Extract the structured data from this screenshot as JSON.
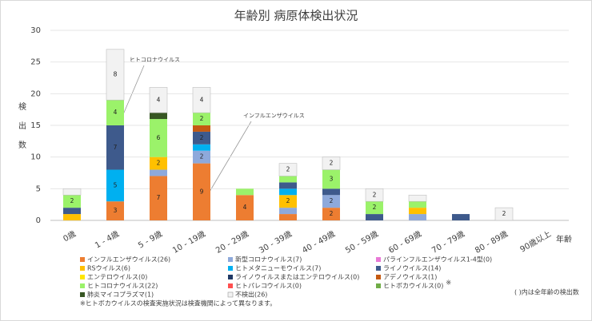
{
  "chart_data": {
    "type": "stacked-bar",
    "title": "年齢別 病原体検出状況",
    "y_label": "検出数",
    "x_label": "年齢",
    "categories": [
      "0歳",
      "1 - 4歳",
      "5 - 9歳",
      "10 - 19歳",
      "20 - 29歳",
      "30 - 39歳",
      "40 - 49歳",
      "50 - 59歳",
      "60 - 69歳",
      "70 - 79歳",
      "80 - 89歳",
      "90歳以上"
    ],
    "ylim": [
      0,
      30
    ],
    "yticks": [
      0,
      5,
      10,
      15,
      20,
      25,
      30
    ],
    "grid": true,
    "series": [
      {
        "name": "インフルエンザウイルス(26)",
        "color": "#ED7D31",
        "values": [
          0,
          3,
          7,
          9,
          4,
          1,
          2,
          0,
          0,
          0,
          0,
          0
        ]
      },
      {
        "name": "新型コロナウイルス(7)",
        "color": "#8EA9DB",
        "values": [
          0,
          0,
          1,
          2,
          0,
          1,
          2,
          0,
          1,
          0,
          0,
          0
        ]
      },
      {
        "name": "パラインフルエンザウイルス1-4型(0)",
        "color": "#E879D6",
        "values": [
          0,
          0,
          0,
          0,
          0,
          0,
          0,
          0,
          0,
          0,
          0,
          0
        ]
      },
      {
        "name": "RSウイルス(6)",
        "color": "#FFC000",
        "values": [
          1,
          0,
          2,
          0,
          0,
          2,
          0,
          0,
          1,
          0,
          0,
          0
        ]
      },
      {
        "name": "ヒトメタニューモウイルス(7)",
        "color": "#00B0F0",
        "values": [
          0,
          5,
          0,
          1,
          0,
          1,
          0,
          0,
          0,
          0,
          0,
          0
        ]
      },
      {
        "name": "ライノウイルス(14)",
        "color": "#3E5A8C",
        "values": [
          1,
          7,
          0,
          2,
          0,
          1,
          1,
          1,
          0,
          1,
          0,
          0
        ]
      },
      {
        "name": "エンテロウイルス(0)",
        "color": "#FFE600",
        "values": [
          0,
          0,
          0,
          0,
          0,
          0,
          0,
          0,
          0,
          0,
          0,
          0
        ]
      },
      {
        "name": "ライノウイルスまたはエンテロウイルス(0)",
        "color": "#1F3864",
        "values": [
          0,
          0,
          0,
          0,
          0,
          0,
          0,
          0,
          0,
          0,
          0,
          0
        ]
      },
      {
        "name": "アデノウイルス(1)",
        "color": "#C55A11",
        "values": [
          0,
          0,
          0,
          1,
          0,
          0,
          0,
          0,
          0,
          0,
          0,
          0
        ]
      },
      {
        "name": "ヒトコロナウイルス(22)",
        "color": "#9BF26A",
        "values": [
          2,
          4,
          6,
          2,
          1,
          1,
          3,
          2,
          1,
          0,
          0,
          0
        ]
      },
      {
        "name": "ヒトパレコウイルス(0)",
        "color": "#FF5050",
        "values": [
          0,
          0,
          0,
          0,
          0,
          0,
          0,
          0,
          0,
          0,
          0,
          0
        ]
      },
      {
        "name": "ヒトボカウイルス(0)",
        "color": "#70AD47",
        "values": [
          0,
          0,
          0,
          0,
          0,
          0,
          0,
          0,
          0,
          0,
          0,
          0
        ]
      },
      {
        "name": "肺炎マイコプラズマ(1)",
        "color": "#375623",
        "values": [
          0,
          0,
          1,
          0,
          0,
          0,
          0,
          0,
          0,
          0,
          0,
          0
        ]
      },
      {
        "name": "不検出(26)",
        "color": "#F2F2F2",
        "values": [
          1,
          8,
          4,
          4,
          0,
          2,
          2,
          2,
          1,
          0,
          2,
          0
        ]
      }
    ],
    "annotations": [
      "ヒトコロナウイルス",
      "インフルエンザウイルス"
    ],
    "legend_mark": "※",
    "note_total": "( )内は全年齢の検出数",
    "footnote": "※ヒトボカウイルスの検査実施状況は検査機関によって異なります。"
  }
}
